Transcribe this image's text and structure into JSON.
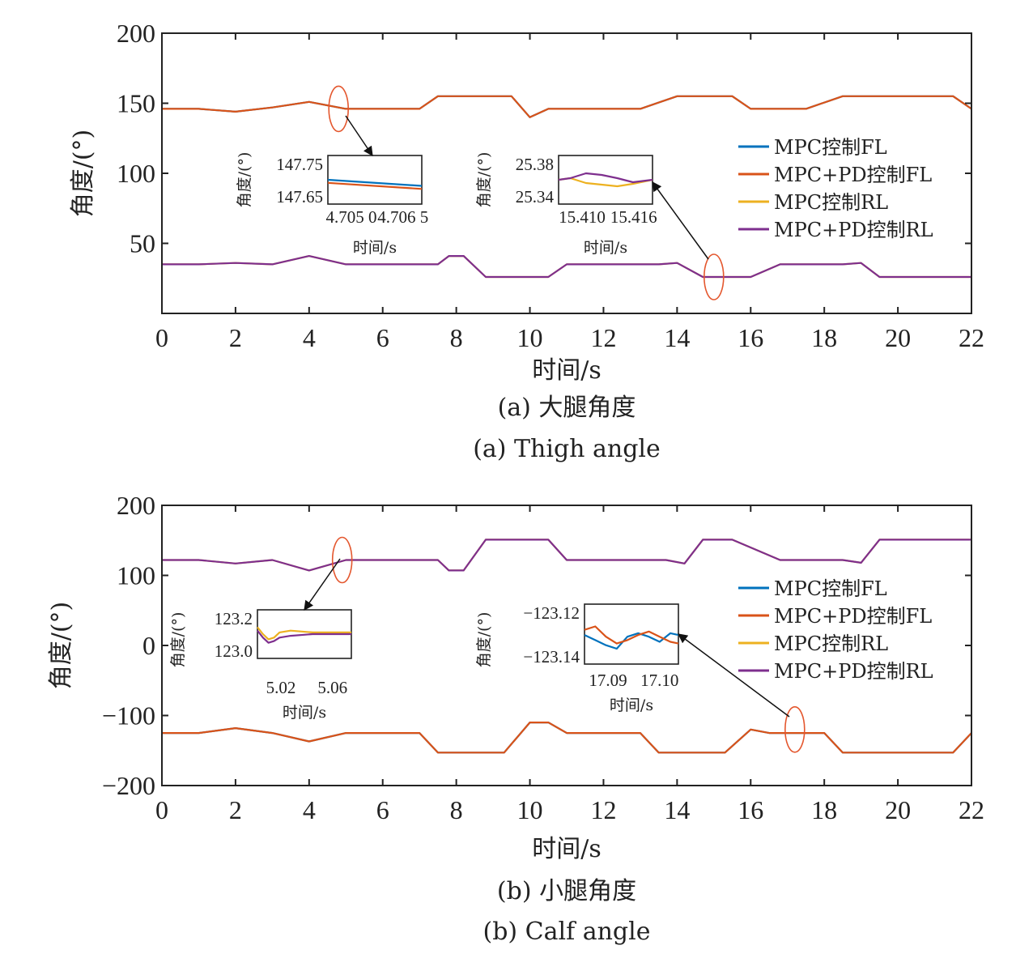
{
  "colors": {
    "mpc_fl": "#0072BD",
    "mpcpd_fl": "#D95319",
    "mpc_rl": "#EDB120",
    "mpcpd_rl": "#7E2F8E",
    "marker": "#E4572E",
    "axis": "#222222"
  },
  "chart_data": [
    {
      "type": "line",
      "caption_cn": "(a) 大腿角度",
      "caption_en": "(a) Thigh angle",
      "xlabel": "时间/s",
      "ylabel": "角度/(°)",
      "xlim": [
        0,
        22
      ],
      "ylim": [
        0,
        200
      ],
      "xticks": [
        0,
        2,
        4,
        6,
        8,
        10,
        12,
        14,
        16,
        18,
        20,
        22
      ],
      "yticks": [
        50,
        100,
        150,
        200
      ],
      "legend_position": "right",
      "series": [
        {
          "name": "MPC控制FL",
          "x": [
            0,
            1,
            2,
            3,
            4,
            5,
            7,
            7.5,
            9.5,
            10,
            10.5,
            11,
            13,
            14,
            15.5,
            16,
            17.5,
            18.5,
            20,
            21.5,
            22
          ],
          "y": [
            146,
            146,
            144,
            147,
            151,
            146,
            146,
            155,
            155,
            140,
            146,
            146,
            146,
            155,
            155,
            146,
            146,
            155,
            155,
            155,
            146
          ]
        },
        {
          "name": "MPC+PD控制FL",
          "x": [
            0,
            1,
            2,
            3,
            4,
            5,
            7,
            7.5,
            9.5,
            10,
            10.5,
            11,
            13,
            14,
            15.5,
            16,
            17.5,
            18.5,
            20,
            21.5,
            22
          ],
          "y": [
            146,
            146,
            144,
            147,
            151,
            146,
            146,
            155,
            155,
            140,
            146,
            146,
            146,
            155,
            155,
            146,
            146,
            155,
            155,
            155,
            146
          ]
        },
        {
          "name": "MPC控制RL",
          "x": [
            0,
            1,
            2,
            3,
            4,
            5,
            7.5,
            7.8,
            8.2,
            8.8,
            10.5,
            11,
            13.5,
            14,
            14.7,
            16,
            16.8,
            18.5,
            19,
            19.5,
            22
          ],
          "y": [
            35,
            35,
            36,
            35,
            41,
            35,
            35,
            41,
            41,
            26,
            26,
            35,
            35,
            36,
            26,
            26,
            35,
            35,
            36,
            26,
            26
          ]
        },
        {
          "name": "MPC+PD控制RL",
          "x": [
            0,
            1,
            2,
            3,
            4,
            5,
            7.5,
            7.8,
            8.2,
            8.8,
            10.5,
            11,
            13.5,
            14,
            14.7,
            16,
            16.8,
            18.5,
            19,
            19.5,
            22
          ],
          "y": [
            35,
            35,
            36,
            35,
            41,
            35,
            35,
            41,
            41,
            26,
            26,
            35,
            35,
            36,
            26,
            26,
            35,
            35,
            36,
            26,
            26
          ]
        }
      ],
      "markers": [
        {
          "x": 4.8,
          "y": 146
        },
        {
          "x": 15.0,
          "y": 26
        }
      ],
      "insets": [
        {
          "position": "left",
          "xlabel": "时间/s",
          "ylabel": "角度/(°)",
          "xtick_labels": [
            "4.705 0",
            "4.706 5"
          ],
          "ytick_labels": [
            "147.75",
            "147.65"
          ],
          "xlim": [
            4.7045,
            4.707
          ],
          "ylim": [
            147.62,
            147.78
          ],
          "series": [
            {
              "name": "MPC控制FL",
              "x": [
                4.7045,
                4.707
              ],
              "y": [
                147.7,
                147.68
              ]
            },
            {
              "name": "MPC+PD控制FL",
              "x": [
                4.7045,
                4.707
              ],
              "y": [
                147.69,
                147.67
              ]
            }
          ]
        },
        {
          "position": "right",
          "xlabel": "时间/s",
          "ylabel": "角度/(°)",
          "xtick_labels": [
            "15.410",
            "15.416"
          ],
          "ytick_labels": [
            "25.38",
            "25.34"
          ],
          "xlim": [
            15.4075,
            15.4195
          ],
          "ylim": [
            25.33,
            25.39
          ],
          "series": [
            {
              "name": "MPC控制RL",
              "x": [
                15.4075,
                15.409,
                15.411,
                15.413,
                15.415,
                15.417,
                15.4195
              ],
              "y": [
                25.36,
                25.362,
                25.356,
                25.354,
                25.352,
                25.355,
                25.36
              ]
            },
            {
              "name": "MPC+PD控制RL",
              "x": [
                15.4075,
                15.409,
                15.411,
                15.413,
                15.415,
                15.417,
                15.4195
              ],
              "y": [
                25.36,
                25.362,
                25.368,
                25.366,
                25.362,
                25.357,
                25.36
              ]
            }
          ]
        }
      ]
    },
    {
      "type": "line",
      "caption_cn": "(b) 小腿角度",
      "caption_en": "(b) Calf angle",
      "xlabel": "时间/s",
      "ylabel": "角度/(°)",
      "xlim": [
        0,
        22
      ],
      "ylim": [
        -200,
        200
      ],
      "xticks": [
        0,
        2,
        4,
        6,
        8,
        10,
        12,
        14,
        16,
        18,
        20,
        22
      ],
      "yticks": [
        -200,
        -100,
        0,
        100,
        200
      ],
      "ytick_labels": [
        "−200",
        "−100",
        "0",
        "100",
        "200"
      ],
      "legend_position": "right",
      "series": [
        {
          "name": "MPC控制FL",
          "x": [
            0,
            1,
            2,
            3,
            4,
            5,
            7,
            7.5,
            9.3,
            10,
            10.5,
            11,
            13,
            13.5,
            15.3,
            16,
            16.5,
            18,
            18.5,
            21.5,
            22
          ],
          "y": [
            -125,
            -125,
            -118,
            -125,
            -137,
            -125,
            -125,
            -153,
            -153,
            -110,
            -110,
            -125,
            -125,
            -153,
            -153,
            -120,
            -125,
            -125,
            -153,
            -153,
            -125
          ]
        },
        {
          "name": "MPC+PD控制FL",
          "x": [
            0,
            1,
            2,
            3,
            4,
            5,
            7,
            7.5,
            9.3,
            10,
            10.5,
            11,
            13,
            13.5,
            15.3,
            16,
            16.5,
            18,
            18.5,
            21.5,
            22
          ],
          "y": [
            -125,
            -125,
            -118,
            -125,
            -137,
            -125,
            -125,
            -153,
            -153,
            -110,
            -110,
            -125,
            -125,
            -153,
            -153,
            -120,
            -125,
            -125,
            -153,
            -153,
            -125
          ]
        },
        {
          "name": "MPC控制RL",
          "x": [
            0,
            1,
            2,
            3,
            4,
            5,
            7.5,
            7.8,
            8.2,
            8.8,
            10.5,
            11,
            13.7,
            14.2,
            14.7,
            15.5,
            16.8,
            18.5,
            19,
            19.5,
            22
          ],
          "y": [
            122,
            122,
            117,
            122,
            107,
            122,
            122,
            107,
            107,
            151,
            151,
            122,
            122,
            117,
            151,
            151,
            122,
            122,
            118,
            151,
            151
          ]
        },
        {
          "name": "MPC+PD控制RL",
          "x": [
            0,
            1,
            2,
            3,
            4,
            5,
            7.5,
            7.8,
            8.2,
            8.8,
            10.5,
            11,
            13.7,
            14.2,
            14.7,
            15.5,
            16.8,
            18.5,
            19,
            19.5,
            22
          ],
          "y": [
            122,
            122,
            117,
            122,
            107,
            122,
            122,
            107,
            107,
            151,
            151,
            122,
            122,
            117,
            151,
            151,
            122,
            122,
            118,
            151,
            151
          ]
        }
      ],
      "markers": [
        {
          "x": 4.9,
          "y": 122
        },
        {
          "x": 17.2,
          "y": -120
        }
      ],
      "insets": [
        {
          "position": "left",
          "xlabel": "时间/s",
          "ylabel": "角度/(°)",
          "xtick_labels": [
            "5.02",
            "5.06"
          ],
          "ytick_labels": [
            "123.2",
            "123.0"
          ],
          "xlim": [
            4.99,
            5.075
          ],
          "ylim": [
            122.98,
            123.26
          ],
          "series": [
            {
              "name": "MPC控制RL",
              "x": [
                4.99,
                4.995,
                5.0,
                5.005,
                5.01,
                5.02,
                5.04,
                5.06,
                5.075
              ],
              "y": [
                123.16,
                123.12,
                123.09,
                123.1,
                123.13,
                123.14,
                123.13,
                123.13,
                123.13
              ]
            },
            {
              "name": "MPC+PD控制RL",
              "x": [
                4.99,
                4.995,
                5.0,
                5.005,
                5.01,
                5.02,
                5.04,
                5.06,
                5.075
              ],
              "y": [
                123.14,
                123.1,
                123.07,
                123.08,
                123.1,
                123.11,
                123.12,
                123.12,
                123.12
              ]
            }
          ]
        },
        {
          "position": "right",
          "xlabel": "时间/s",
          "ylabel": "角度/(°)",
          "xtick_labels": [
            "17.09",
            "17.10"
          ],
          "ytick_labels": [
            "−123.12",
            "−123.14"
          ],
          "xlim": [
            17.085,
            17.1025
          ],
          "ylim": [
            -123.15,
            -123.115
          ],
          "series": [
            {
              "name": "MPC控制FL",
              "x": [
                17.085,
                17.087,
                17.089,
                17.091,
                17.093,
                17.095,
                17.097,
                17.099,
                17.101,
                17.1025
              ],
              "y": [
                -123.133,
                -123.136,
                -123.139,
                -123.141,
                -123.134,
                -123.132,
                -123.134,
                -123.137,
                -123.132,
                -123.133
              ]
            },
            {
              "name": "MPC+PD控制FL",
              "x": [
                17.085,
                17.087,
                17.089,
                17.091,
                17.093,
                17.095,
                17.097,
                17.099,
                17.101,
                17.1025
              ],
              "y": [
                -123.13,
                -123.128,
                -123.134,
                -123.138,
                -123.136,
                -123.133,
                -123.131,
                -123.134,
                -123.137,
                -123.138
              ]
            }
          ]
        }
      ]
    }
  ]
}
